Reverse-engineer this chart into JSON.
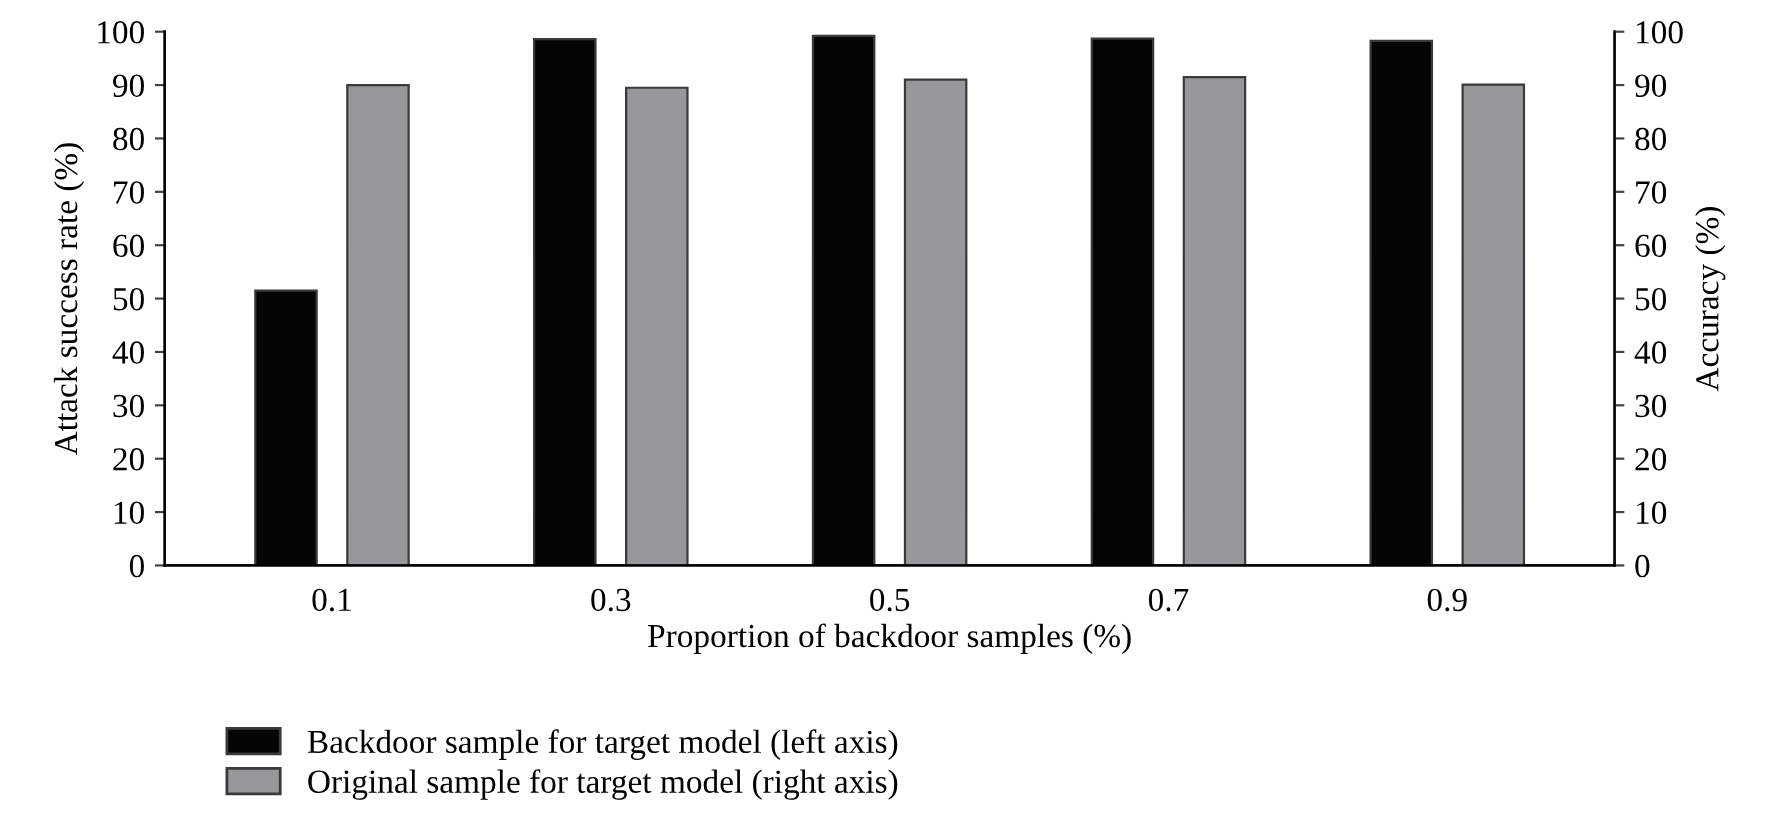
{
  "chart_data": {
    "type": "bar",
    "xlabel": "Proportion of backdoor samples (%)",
    "ylabel": "Attack success rate (%)",
    "y2label": "Accuracy (%)",
    "categories": [
      "0.1",
      "0.3",
      "0.5",
      "0.7",
      "0.9"
    ],
    "series": [
      {
        "name": "Backdoor sample for target model (left axis)",
        "color": "#050505",
        "values": [
          51.5,
          98.6,
          99.2,
          98.7,
          98.3
        ]
      },
      {
        "name": "Original sample for target model (right axis)",
        "color": "#97989b",
        "axis": "y2",
        "values": [
          90,
          89.5,
          91,
          91.5,
          90.1
        ]
      }
    ],
    "ylim": [
      0,
      100
    ],
    "yticks": [
      0,
      10,
      20,
      30,
      40,
      50,
      60,
      70,
      80,
      90,
      100
    ],
    "y2lim": [
      0,
      100
    ],
    "y2ticks": [
      0,
      10,
      20,
      30,
      40,
      50,
      60,
      70,
      80,
      90,
      100
    ],
    "grid": false,
    "legend": "bottom left"
  }
}
